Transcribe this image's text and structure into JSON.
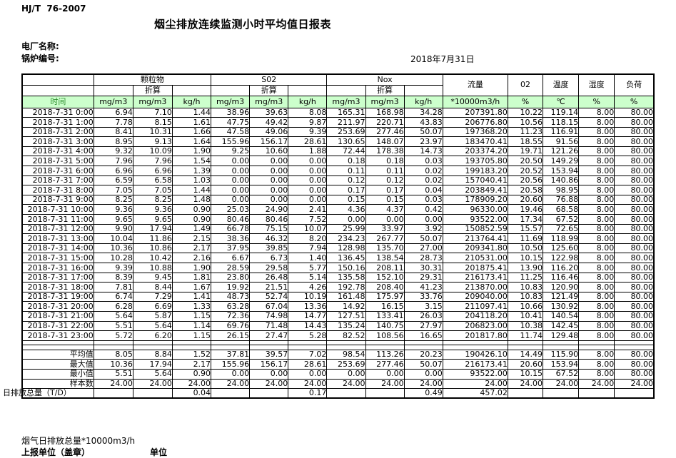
{
  "meta": {
    "standard_code": "HJ/T  76-2007",
    "title": "烟尘排放连续监测小时平均值日报表",
    "plant_label": "电厂名称:",
    "boiler_label": "锅炉编号:",
    "date": "2018年7月31日"
  },
  "table": {
    "header": {
      "time_label": "时间",
      "groups": [
        {
          "name": "颗粒物",
          "sub": "折算"
        },
        {
          "name": "S02",
          "sub": "折算"
        },
        {
          "name": "Nox",
          "sub": "折算"
        }
      ],
      "singles": [
        "流量",
        "02",
        "温度",
        "湿度",
        "负荷"
      ],
      "units": [
        "mg/m3",
        "mg/m3",
        "kg/h",
        "mg/m3",
        "mg/m3",
        "kg/h",
        "mg/m3",
        "mg/m3",
        "kg/h",
        "*10000m3/h",
        "%",
        "℃",
        "%",
        "%"
      ]
    },
    "rows": [
      {
        "time": "2018-7-31  0:00",
        "values": [
          "6.94",
          "7.10",
          "1.44",
          "38.96",
          "39.63",
          "8.08",
          "165.31",
          "168.98",
          "34.28",
          "207391.80",
          "10.22",
          "119.14",
          "8.00",
          "80.00"
        ]
      },
      {
        "time": "2018-7-31  1:00",
        "values": [
          "7.78",
          "8.15",
          "1.61",
          "47.75",
          "49.42",
          "9.87",
          "211.97",
          "220.71",
          "43.83",
          "206776.80",
          "10.56",
          "118.15",
          "8.00",
          "80.00"
        ]
      },
      {
        "time": "2018-7-31  2:00",
        "values": [
          "8.41",
          "10.31",
          "1.66",
          "47.58",
          "49.06",
          "9.39",
          "253.69",
          "277.46",
          "50.07",
          "197368.20",
          "11.23",
          "116.91",
          "8.00",
          "80.00"
        ]
      },
      {
        "time": "2018-7-31  3:00",
        "values": [
          "8.95",
          "9.13",
          "1.64",
          "155.96",
          "156.17",
          "28.61",
          "130.65",
          "148.07",
          "23.97",
          "183470.41",
          "18.55",
          "91.56",
          "8.00",
          "80.00"
        ]
      },
      {
        "time": "2018-7-31  4:00",
        "values": [
          "9.32",
          "10.09",
          "1.90",
          "9.25",
          "10.60",
          "1.88",
          "72.44",
          "178.38",
          "14.73",
          "203374.20",
          "19.71",
          "121.26",
          "8.00",
          "80.00"
        ]
      },
      {
        "time": "2018-7-31  5:00",
        "values": [
          "7.96",
          "7.96",
          "1.54",
          "0.00",
          "0.00",
          "0.00",
          "0.18",
          "0.18",
          "0.03",
          "193705.80",
          "20.50",
          "149.29",
          "8.00",
          "80.00"
        ]
      },
      {
        "time": "2018-7-31  6:00",
        "values": [
          "6.96",
          "6.96",
          "1.39",
          "0.00",
          "0.00",
          "0.00",
          "0.11",
          "0.11",
          "0.02",
          "199183.20",
          "20.52",
          "153.94",
          "8.00",
          "80.00"
        ]
      },
      {
        "time": "2018-7-31  7:00",
        "values": [
          "6.59",
          "6.58",
          "1.03",
          "0.00",
          "0.00",
          "0.00",
          "0.12",
          "0.12",
          "0.02",
          "157040.41",
          "20.56",
          "140.86",
          "8.00",
          "80.00"
        ]
      },
      {
        "time": "2018-7-31  8:00",
        "values": [
          "7.05",
          "7.05",
          "1.44",
          "0.00",
          "0.00",
          "0.00",
          "0.17",
          "0.17",
          "0.04",
          "203849.41",
          "20.58",
          "98.95",
          "8.00",
          "80.00"
        ]
      },
      {
        "time": "2018-7-31  9:00",
        "values": [
          "8.25",
          "8.25",
          "1.48",
          "0.00",
          "0.00",
          "0.00",
          "0.15",
          "0.15",
          "0.03",
          "178909.20",
          "20.60",
          "76.88",
          "8.00",
          "80.00"
        ]
      },
      {
        "time": "2018-7-31 10:00",
        "values": [
          "9.36",
          "9.36",
          "0.90",
          "25.03",
          "24.90",
          "2.41",
          "4.36",
          "4.37",
          "0.42",
          "96330.00",
          "19.46",
          "68.58",
          "8.00",
          "80.00"
        ]
      },
      {
        "time": "2018-7-31 11:00",
        "values": [
          "9.65",
          "9.65",
          "0.90",
          "80.46",
          "80.46",
          "7.52",
          "0.00",
          "0.00",
          "0.00",
          "93522.00",
          "17.34",
          "67.52",
          "8.00",
          "80.00"
        ]
      },
      {
        "time": "2018-7-31 12:00",
        "values": [
          "9.90",
          "17.94",
          "1.49",
          "66.78",
          "75.15",
          "10.07",
          "25.99",
          "33.97",
          "3.92",
          "150852.59",
          "15.57",
          "72.65",
          "8.00",
          "80.00"
        ]
      },
      {
        "time": "2018-7-31 13:00",
        "values": [
          "10.04",
          "11.86",
          "2.15",
          "38.36",
          "46.32",
          "8.20",
          "234.23",
          "267.77",
          "50.07",
          "213764.41",
          "11.69",
          "118.99",
          "8.00",
          "80.00"
        ]
      },
      {
        "time": "2018-7-31 14:00",
        "values": [
          "10.36",
          "10.86",
          "2.17",
          "37.95",
          "39.85",
          "7.94",
          "128.98",
          "135.70",
          "27.00",
          "209341.80",
          "10.50",
          "125.60",
          "8.00",
          "80.00"
        ]
      },
      {
        "time": "2018-7-31 15:00",
        "values": [
          "10.28",
          "10.42",
          "2.16",
          "6.67",
          "6.73",
          "1.40",
          "136.45",
          "138.54",
          "28.73",
          "210531.00",
          "10.15",
          "122.98",
          "8.00",
          "80.00"
        ]
      },
      {
        "time": "2018-7-31 16:00",
        "values": [
          "9.39",
          "10.88",
          "1.90",
          "28.59",
          "29.58",
          "5.77",
          "150.16",
          "208.11",
          "30.31",
          "201875.41",
          "13.90",
          "116.20",
          "8.00",
          "80.00"
        ]
      },
      {
        "time": "2018-7-31 17:00",
        "values": [
          "8.39",
          "9.45",
          "1.81",
          "23.80",
          "26.48",
          "5.14",
          "135.58",
          "152.10",
          "29.31",
          "216173.41",
          "11.25",
          "116.46",
          "8.00",
          "80.00"
        ]
      },
      {
        "time": "2018-7-31 18:00",
        "values": [
          "7.81",
          "8.44",
          "1.67",
          "19.92",
          "21.51",
          "4.26",
          "192.78",
          "208.40",
          "41.23",
          "213870.00",
          "10.83",
          "120.90",
          "8.00",
          "80.00"
        ]
      },
      {
        "time": "2018-7-31 19:00",
        "values": [
          "6.74",
          "7.29",
          "1.41",
          "48.73",
          "52.74",
          "10.19",
          "161.48",
          "175.97",
          "33.76",
          "209040.00",
          "10.83",
          "121.49",
          "8.00",
          "80.00"
        ]
      },
      {
        "time": "2018-7-31 20:00",
        "values": [
          "6.28",
          "6.69",
          "1.33",
          "63.28",
          "67.04",
          "13.36",
          "14.92",
          "16.15",
          "3.15",
          "211097.41",
          "10.66",
          "130.92",
          "8.00",
          "80.00"
        ]
      },
      {
        "time": "2018-7-31 21:00",
        "values": [
          "5.64",
          "5.87",
          "1.15",
          "72.36",
          "74.98",
          "14.77",
          "127.51",
          "133.41",
          "26.03",
          "204118.20",
          "10.41",
          "140.54",
          "8.00",
          "80.00"
        ]
      },
      {
        "time": "2018-7-31 22:00",
        "values": [
          "5.51",
          "5.64",
          "1.14",
          "69.76",
          "71.48",
          "14.43",
          "135.24",
          "140.75",
          "27.97",
          "206823.00",
          "10.38",
          "142.45",
          "8.00",
          "80.00"
        ]
      },
      {
        "time": "2018-7-31 23:00",
        "values": [
          "5.72",
          "6.20",
          "1.15",
          "26.15",
          "27.47",
          "5.28",
          "82.52",
          "108.56",
          "16.65",
          "201817.80",
          "11.74",
          "129.48",
          "8.00",
          "80.00"
        ]
      }
    ],
    "summary": [
      {
        "label": "平均值",
        "values": [
          "8.05",
          "8.84",
          "1.52",
          "37.81",
          "39.57",
          "7.02",
          "98.54",
          "113.26",
          "20.23",
          "190426.10",
          "14.49",
          "115.90",
          "8.00",
          "80.00"
        ]
      },
      {
        "label": "最大值",
        "values": [
          "10.36",
          "17.94",
          "2.17",
          "155.96",
          "156.17",
          "28.61",
          "253.69",
          "277.46",
          "50.07",
          "216173.41",
          "20.60",
          "153.94",
          "8.00",
          "80.00"
        ]
      },
      {
        "label": "最小值",
        "values": [
          "5.51",
          "5.64",
          "0.90",
          "0.00",
          "0.00",
          "0.00",
          "0.00",
          "0.00",
          "0.00",
          "93522.00",
          "10.15",
          "67.52",
          "8.00",
          "80.00"
        ]
      },
      {
        "label": "样本数",
        "values": [
          "24.00",
          "24.00",
          "24.00",
          "24.00",
          "24.00",
          "24.00",
          "24.00",
          "24.00",
          "24.00",
          "24.00",
          "24.00",
          "24.00",
          "24.00",
          "24.00"
        ]
      },
      {
        "label": "日排放总量（T/D）",
        "values": [
          "",
          "",
          "0.04",
          "",
          "",
          "0.17",
          "",
          "",
          "0.49",
          "457.02",
          "",
          "",
          "",
          ""
        ]
      }
    ]
  },
  "footer": {
    "line1": "烟气日排放总量*10000m3/h",
    "line2": "上报单位（盖章）",
    "unit_label": "单位"
  },
  "colors": {
    "header_green": "#ccffcc",
    "time_label_green": "#2f8f2f",
    "border": "#000000"
  }
}
